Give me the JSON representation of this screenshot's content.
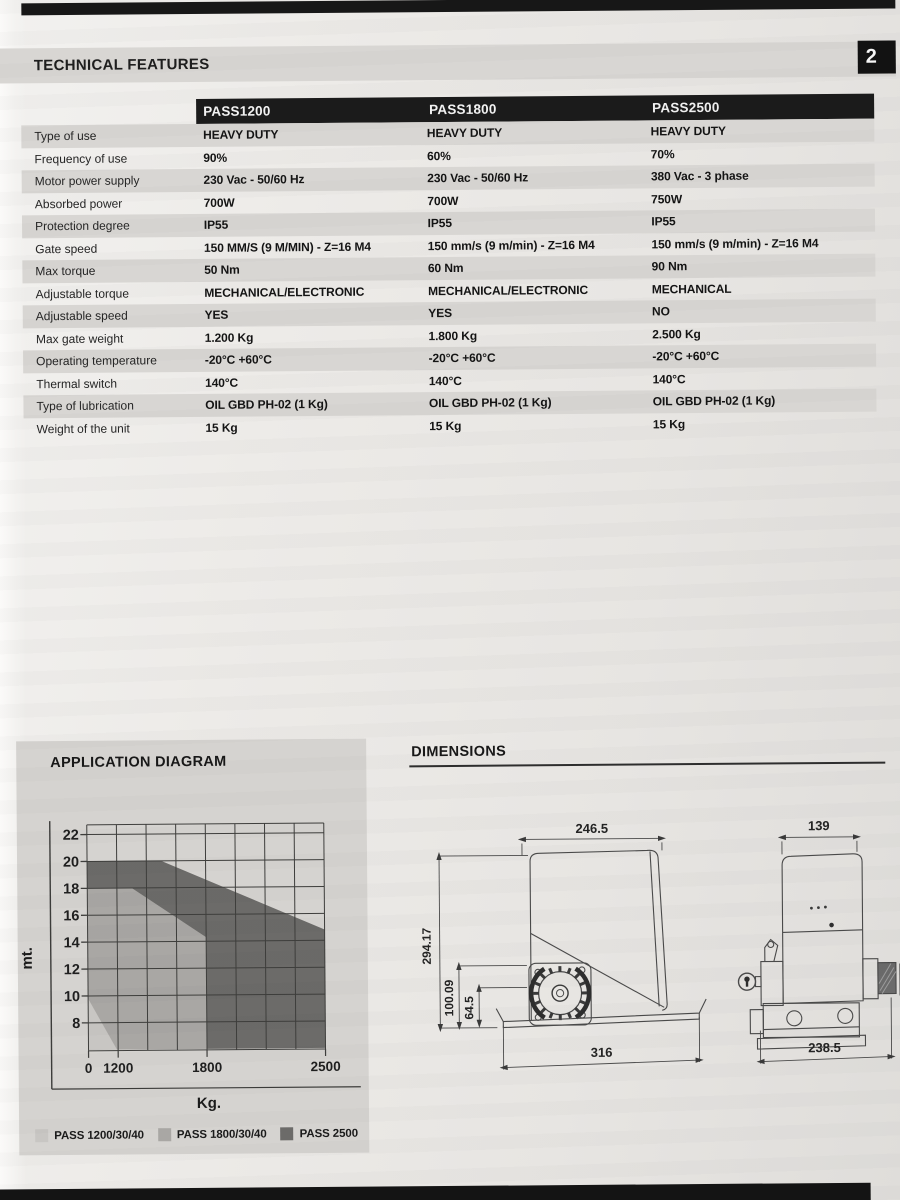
{
  "page": {
    "header": "TECHNICAL FEATURES",
    "number": "2"
  },
  "table": {
    "columns": [
      "PASS1200",
      "PASS1800",
      "PASS2500"
    ],
    "rows": [
      {
        "label": "Type of use",
        "values": [
          "HEAVY DUTY",
          "HEAVY DUTY",
          "HEAVY DUTY"
        ]
      },
      {
        "label": "Frequency of use",
        "values": [
          "90%",
          "60%",
          "70%"
        ]
      },
      {
        "label": "Motor power supply",
        "values": [
          "230 Vac - 50/60 Hz",
          "230 Vac - 50/60 Hz",
          "380 Vac - 3 phase"
        ]
      },
      {
        "label": "Absorbed power",
        "values": [
          "700W",
          "700W",
          "750W"
        ]
      },
      {
        "label": "Protection degree",
        "values": [
          "IP55",
          "IP55",
          "IP55"
        ]
      },
      {
        "label": "Gate speed",
        "values": [
          "150 MM/S (9 M/MIN) - Z=16 M4",
          "150 mm/s (9 m/min) - Z=16 M4",
          "150 mm/s (9 m/min) - Z=16 M4"
        ]
      },
      {
        "label": "Max torque",
        "values": [
          "50 Nm",
          "60 Nm",
          "90 Nm"
        ]
      },
      {
        "label": "Adjustable torque",
        "values": [
          "MECHANICAL/ELECTRONIC",
          "MECHANICAL/ELECTRONIC",
          "MECHANICAL"
        ]
      },
      {
        "label": "Adjustable speed",
        "values": [
          "YES",
          "YES",
          "NO"
        ]
      },
      {
        "label": "Max gate weight",
        "values": [
          "1.200 Kg",
          "1.800 Kg",
          "2.500 Kg"
        ]
      },
      {
        "label": "Operating temperature",
        "values": [
          "-20°C +60°C",
          "-20°C +60°C",
          "-20°C +60°C"
        ]
      },
      {
        "label": "Thermal switch",
        "values": [
          "140°C",
          "140°C",
          "140°C"
        ]
      },
      {
        "label": "Type of lubrication",
        "values": [
          "OIL GBD PH-02 (1 Kg)",
          "OIL GBD PH-02 (1 Kg)",
          "OIL GBD PH-02 (1 Kg)"
        ]
      },
      {
        "label": "Weight of the unit",
        "values": [
          "15 Kg",
          "15 Kg",
          "15 Kg"
        ]
      }
    ]
  },
  "application_diagram": {
    "title": "APPLICATION DIAGRAM",
    "legend": [
      {
        "label": "PASS 1200/30/40",
        "color": "#c8c6c3"
      },
      {
        "label": "PASS 1800/30/40",
        "color": "#a9a7a4"
      },
      {
        "label": "PASS 2500",
        "color": "#6c6b69"
      }
    ]
  },
  "chart_data": {
    "type": "area",
    "title": "APPLICATION DIAGRAM",
    "xlabel": "Kg.",
    "ylabel": "mt.",
    "x_tick_labels": [
      "0",
      "1200",
      "1800",
      "2500"
    ],
    "x_tick_kg": [
      0,
      1200,
      1800,
      2500
    ],
    "x_anchor_gridlines": [
      [
        0,
        0
      ],
      [
        1200,
        1
      ],
      [
        1800,
        4
      ],
      [
        2500,
        8
      ]
    ],
    "x_gridline_count": 9,
    "y_ticks": [
      8,
      10,
      12,
      14,
      16,
      18,
      20,
      22
    ],
    "y_range_drawn": [
      6,
      22.7
    ],
    "grid": true,
    "note": "x axis is non-linear: Kg labels sit on evenly spaced gridlines 0,1,4,8",
    "series": [
      {
        "name": "PASS 1800/30/40",
        "color": "#a9a7a4",
        "region_kg_mt": [
          [
            0,
            18
          ],
          [
            1300,
            18
          ],
          [
            1800,
            14.3
          ],
          [
            1800,
            6
          ],
          [
            0,
            6
          ]
        ]
      },
      {
        "name": "PASS 2500",
        "color": "#6c6b69",
        "region_kg_mt": [
          [
            0,
            20
          ],
          [
            1500,
            20
          ],
          [
            2500,
            14.8
          ],
          [
            2500,
            6
          ],
          [
            1800,
            6
          ],
          [
            1800,
            14.3
          ],
          [
            1300,
            18
          ],
          [
            0,
            18
          ]
        ]
      },
      {
        "name": "PASS 1200/30/40",
        "color": "#c8c6c3",
        "region_kg_mt": [
          [
            0,
            9.8
          ],
          [
            1150,
            6
          ],
          [
            0,
            6
          ]
        ]
      }
    ],
    "legend_position": "bottom"
  },
  "dimensions": {
    "title": "DIMENSIONS",
    "side_view": {
      "top_width": "246.5",
      "total_height": "294.17",
      "pinion_axis_height": "100.09",
      "lower_height": "64.5",
      "base_width": "316"
    },
    "front_view": {
      "top_width": "139",
      "base_width": "238.5"
    }
  }
}
